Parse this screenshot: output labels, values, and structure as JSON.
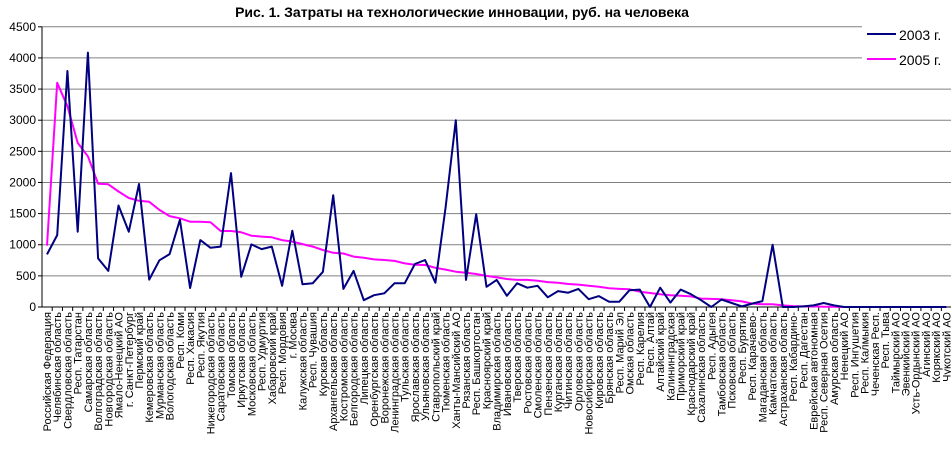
{
  "chart_data": {
    "type": "line",
    "title": "Рис. 1. Затраты на технологические инновации, руб. на человека",
    "xlabel": "",
    "ylabel": "",
    "ylim": [
      0,
      4500
    ],
    "yticks": [
      0,
      500,
      1000,
      1500,
      2000,
      2500,
      3000,
      3500,
      4000,
      4500
    ],
    "grid": true,
    "legend_position": "top-right",
    "categories": [
      "Российская Федерация",
      "Челябинская область",
      "Свердловская область",
      "Респ. Татарстан",
      "Самарская область",
      "Волгоградская область",
      "Новгородская область",
      "Ямало-Ненецкий АО",
      "г. Санкт-Петербург",
      "Пермский край",
      "Кемеровская область",
      "Мурманская область",
      "Вологодская область",
      "Респ. Коми",
      "Респ. Хакасия",
      "Респ. Якутия",
      "Нижегородская область",
      "Саратовская область",
      "Томская область",
      "Иркутская область",
      "Московская область",
      "Респ. Удмуртия",
      "Хабаровский край",
      "Респ. Мордовия",
      "г. Москва",
      "Калужская область",
      "Респ. Чувашия",
      "Курская область",
      "Архангельская область",
      "Костромская область",
      "Белгородская область",
      "Липецкая область",
      "Оренбургская область",
      "Воронежская область",
      "Ленинградская область",
      "Тульская область",
      "Ярославская область",
      "Ульяновская область",
      "Ставропольский край",
      "Тюменская область",
      "Ханты-Мансийский АО",
      "Рязанская область",
      "Респ. Башкортостан",
      "Красноярский край",
      "Владимирская область",
      "Ивановская область",
      "Тверская область",
      "Ростовская область",
      "Смоленская область",
      "Пензенская область",
      "Курганская область",
      "Читинская область",
      "Орловская область",
      "Новосибирская область",
      "Кировская область",
      "Брянская область",
      "Респ. Марий Эл",
      "Омская область",
      "Респ. Карелия",
      "Респ. Алтай",
      "Алтайский край",
      "Калининградская",
      "Приморский край",
      "Краснодарский край",
      "Сахалинская область",
      "Респ. Адыгея",
      "Тамбовская область",
      "Псковская область",
      "Респ. Бурятия",
      "Респ. Карачаево-",
      "Магаданская область",
      "Камчатская область",
      "Астраханская область",
      "Респ. Кабардино-",
      "Респ. Дагестан",
      "Еврейская автономная",
      "Респ. Северная Осетия",
      "Амурская область",
      "Ненецкий АО",
      "Респ. Ингушетия",
      "Респ. Калмыкия",
      "Чеченская Респ.",
      "Респ. Тыва",
      "Таймырский АО",
      "Эвенкийский АО",
      "Усть-Ордынский АО",
      "Агинский АО",
      "Корякский АО",
      "Чукотский АО"
    ],
    "series": [
      {
        "name": "2003 г.",
        "color": "#000080",
        "values": [
          845,
          1155,
          3790,
          1210,
          4085,
          780,
          580,
          1630,
          1210,
          1975,
          440,
          750,
          850,
          1400,
          305,
          1075,
          950,
          970,
          2150,
          485,
          1005,
          930,
          970,
          340,
          1225,
          365,
          380,
          565,
          1795,
          290,
          580,
          110,
          190,
          220,
          380,
          380,
          690,
          755,
          390,
          1600,
          3000,
          435,
          1490,
          325,
          435,
          180,
          380,
          310,
          340,
          155,
          255,
          230,
          290,
          125,
          175,
          85,
          85,
          270,
          280,
          0,
          310,
          70,
          280,
          205,
          110,
          0,
          120,
          65,
          10,
          55,
          95,
          1000,
          0,
          0,
          10,
          25,
          65,
          25,
          0,
          0,
          0,
          0,
          0,
          0,
          0,
          0,
          0,
          0,
          0
        ]
      },
      {
        "name": "2005 г.",
        "color": "#FF00FF",
        "values": [
          985,
          3600,
          3225,
          2635,
          2420,
          1980,
          1970,
          1855,
          1750,
          1705,
          1690,
          1560,
          1460,
          1425,
          1370,
          1370,
          1360,
          1220,
          1220,
          1200,
          1145,
          1130,
          1120,
          1075,
          1050,
          1010,
          970,
          915,
          870,
          860,
          810,
          790,
          765,
          755,
          740,
          700,
          680,
          675,
          630,
          600,
          567,
          550,
          530,
          500,
          475,
          450,
          435,
          435,
          420,
          400,
          390,
          370,
          360,
          340,
          325,
          300,
          290,
          285,
          245,
          225,
          205,
          190,
          180,
          170,
          135,
          130,
          125,
          110,
          90,
          55,
          45,
          45,
          25,
          15,
          10,
          10,
          5,
          5,
          0,
          0,
          0,
          0,
          0,
          0,
          0,
          0,
          0,
          0,
          0
        ]
      }
    ]
  }
}
